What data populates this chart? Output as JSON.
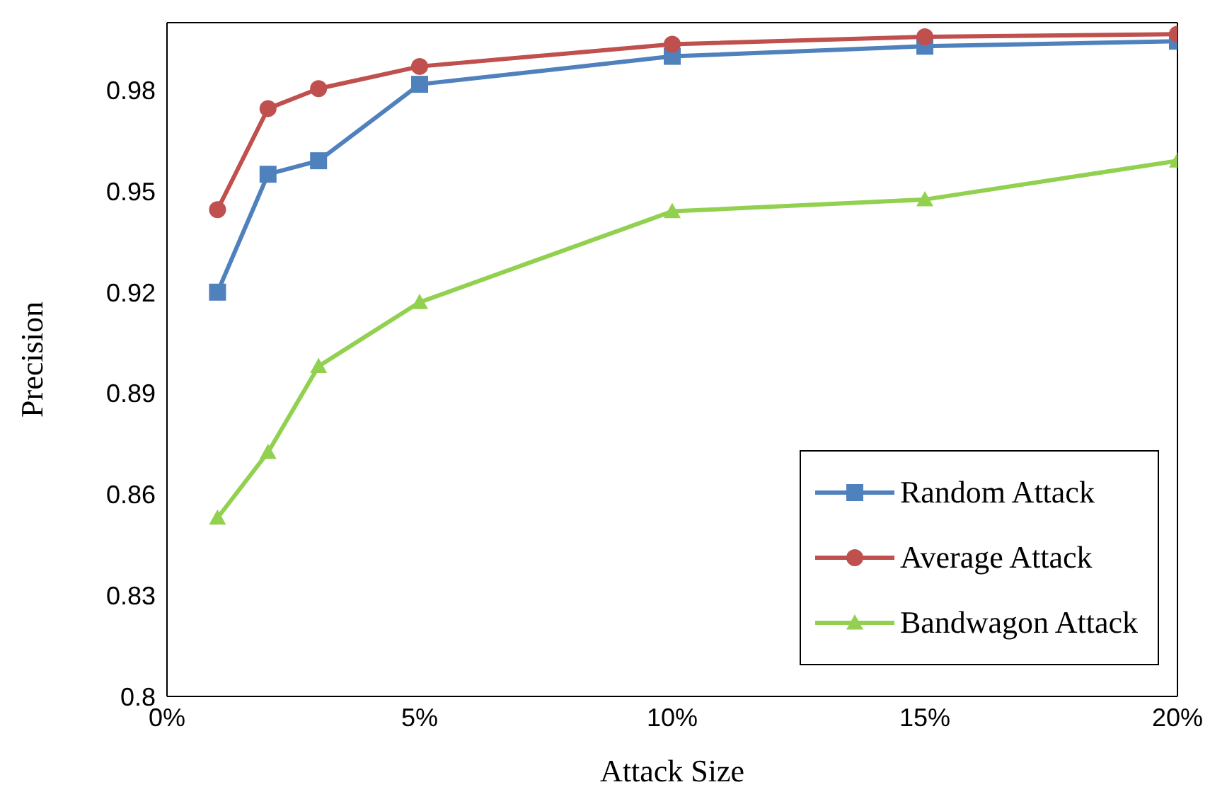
{
  "chart_data": {
    "type": "line",
    "xlabel": "Attack Size",
    "ylabel": "Precision",
    "x": [
      1,
      2,
      3,
      5,
      10,
      15,
      20
    ],
    "xlim": [
      0,
      20
    ],
    "xticks": [
      {
        "value": 0,
        "label": "0%"
      },
      {
        "value": 5,
        "label": "5%"
      },
      {
        "value": 10,
        "label": "10%"
      },
      {
        "value": 15,
        "label": "15%"
      },
      {
        "value": 20,
        "label": "20%"
      }
    ],
    "ylim": [
      0.8,
      1.0
    ],
    "yticks": [
      0.8,
      0.83,
      0.86,
      0.89,
      0.92,
      0.95,
      0.98
    ],
    "grid": false,
    "legend": "bottom right",
    "line_style": "solid",
    "series": [
      {
        "name": "Random Attack",
        "color": "#4f81bd",
        "marker": "square",
        "values": [
          0.92,
          0.955,
          0.959,
          0.9817,
          0.99,
          0.993,
          0.9945
        ]
      },
      {
        "name": "Average Attack",
        "color": "#c0504d",
        "marker": "circle",
        "values": [
          0.9445,
          0.9745,
          0.9804,
          0.987,
          0.9936,
          0.9958,
          0.9966
        ]
      },
      {
        "name": "Bandwagon Attack",
        "color": "#92d050",
        "marker": "triangle",
        "values": [
          0.853,
          0.8725,
          0.898,
          0.917,
          0.944,
          0.9475,
          0.959
        ]
      }
    ]
  }
}
